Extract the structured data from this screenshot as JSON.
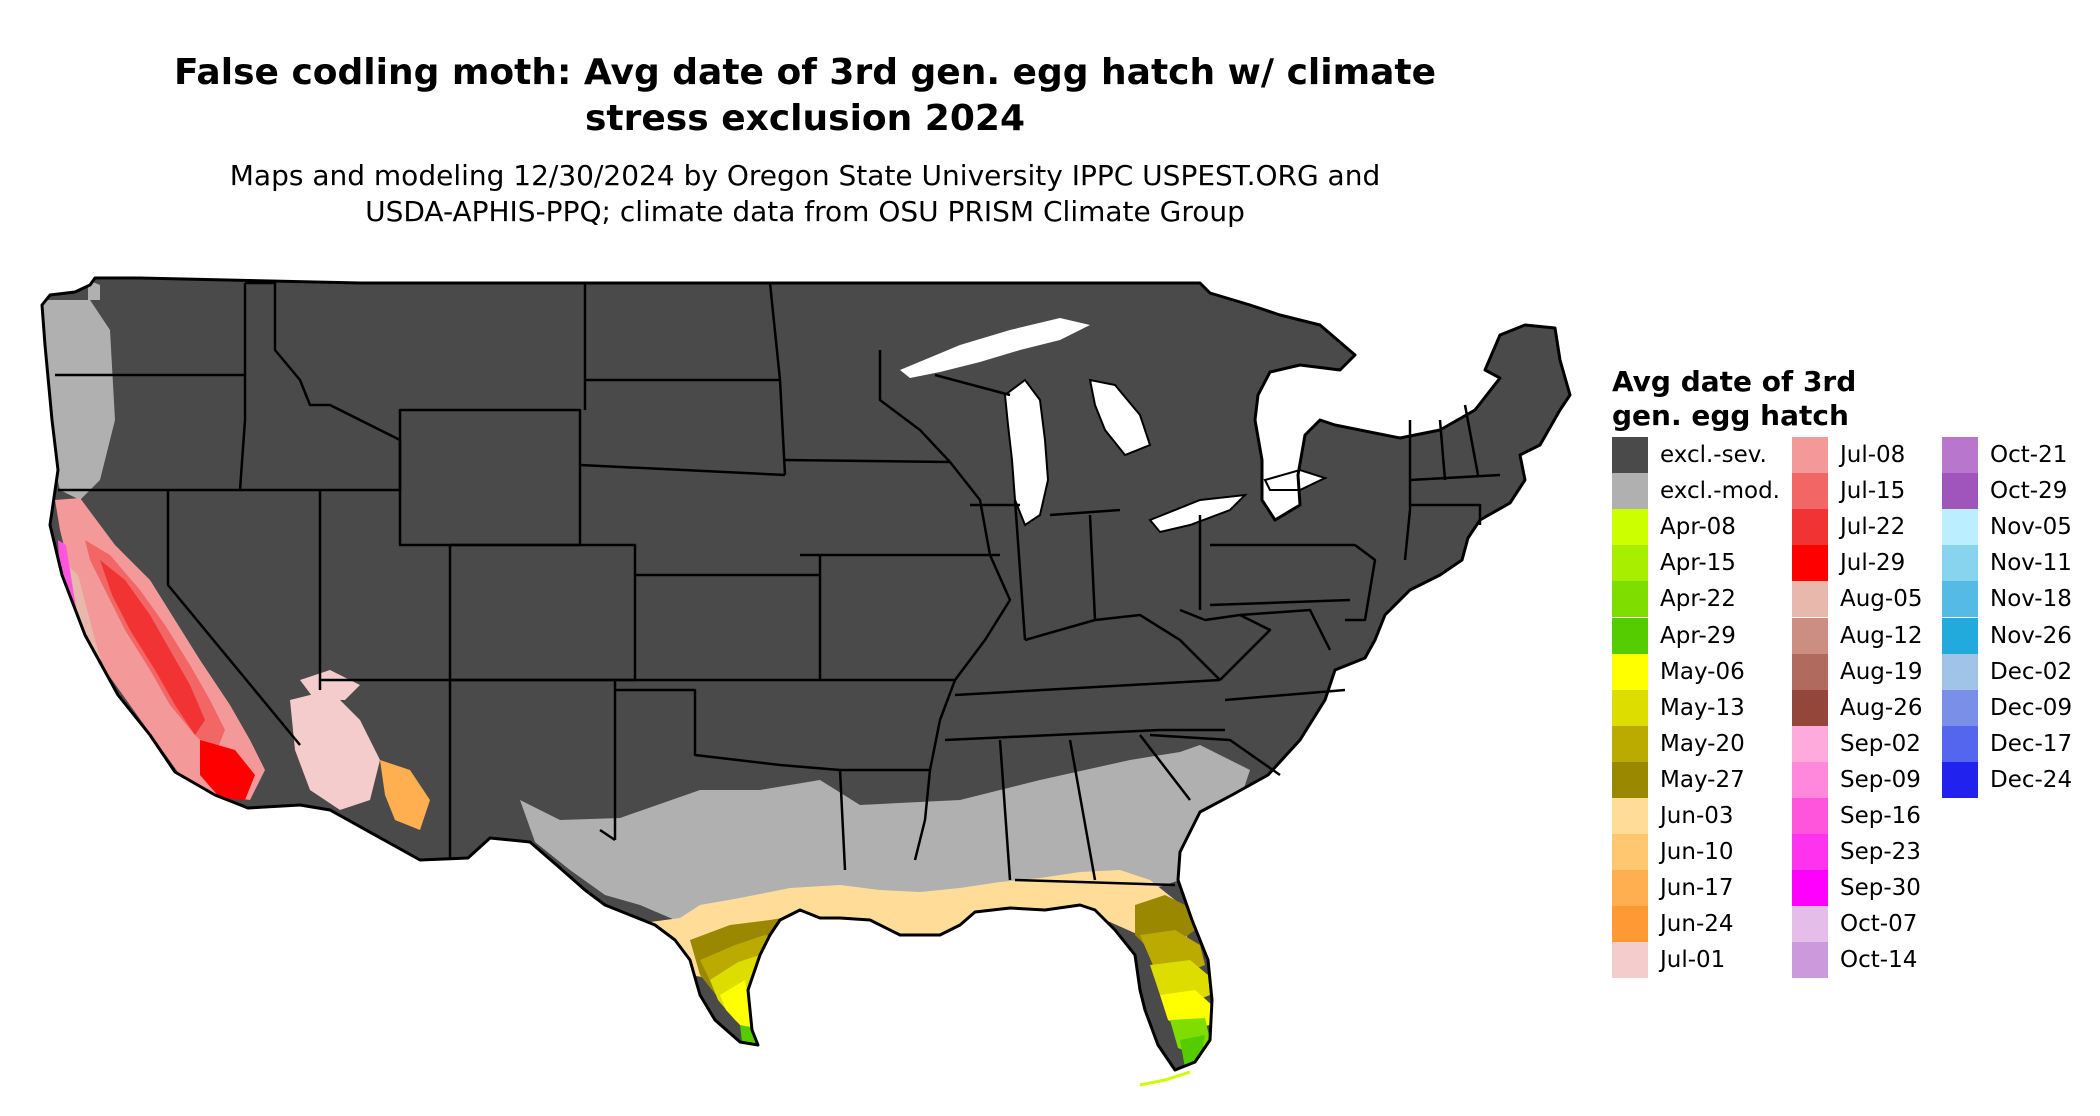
{
  "title_line1": "False codling moth: Avg date of 3rd gen. egg hatch w/ climate",
  "title_line2": "stress exclusion 2024",
  "subtitle_line1": "Maps and modeling 12/30/2024 by Oregon State University IPPC USPEST.ORG and",
  "subtitle_line2": "USDA-APHIS-PPQ; climate data from OSU PRISM Climate Group",
  "legend": {
    "title_line1": "Avg date of 3rd",
    "title_line2": "gen. egg hatch",
    "items": [
      {
        "label": "excl.-sev.",
        "color": "#4a4a4a"
      },
      {
        "label": "excl.-mod.",
        "color": "#b0b0b0"
      },
      {
        "label": "Apr-08",
        "color": "#ccff00"
      },
      {
        "label": "Apr-15",
        "color": "#a8ee00"
      },
      {
        "label": "Apr-22",
        "color": "#80dd00"
      },
      {
        "label": "Apr-29",
        "color": "#55cc00"
      },
      {
        "label": "May-06",
        "color": "#ffff00"
      },
      {
        "label": "May-13",
        "color": "#dddd00"
      },
      {
        "label": "May-20",
        "color": "#bbaa00"
      },
      {
        "label": "May-27",
        "color": "#998800"
      },
      {
        "label": "Jun-03",
        "color": "#ffdd99"
      },
      {
        "label": "Jun-10",
        "color": "#ffc870"
      },
      {
        "label": "Jun-17",
        "color": "#ffae50"
      },
      {
        "label": "Jun-24",
        "color": "#ff9933"
      },
      {
        "label": "Jul-01",
        "color": "#f5cccc"
      },
      {
        "label": "Jul-08",
        "color": "#f49999"
      },
      {
        "label": "Jul-15",
        "color": "#f26666"
      },
      {
        "label": "Jul-22",
        "color": "#f23333"
      },
      {
        "label": "Jul-29",
        "color": "#ff0000"
      },
      {
        "label": "Aug-05",
        "color": "#e8b8ac"
      },
      {
        "label": "Aug-12",
        "color": "#cc8e82"
      },
      {
        "label": "Aug-19",
        "color": "#b06a5e"
      },
      {
        "label": "Aug-26",
        "color": "#94463a"
      },
      {
        "label": "Sep-02",
        "color": "#ffaadd"
      },
      {
        "label": "Sep-09",
        "color": "#ff88dd"
      },
      {
        "label": "Sep-16",
        "color": "#ff55dd"
      },
      {
        "label": "Sep-23",
        "color": "#ff33ee"
      },
      {
        "label": "Sep-30",
        "color": "#ff00ff"
      },
      {
        "label": "Oct-07",
        "color": "#e4bde8"
      },
      {
        "label": "Oct-14",
        "color": "#cc99dd"
      },
      {
        "label": "Oct-21",
        "color": "#b877cc"
      },
      {
        "label": "Oct-29",
        "color": "#a055bb"
      },
      {
        "label": "Nov-05",
        "color": "#bbeeff"
      },
      {
        "label": "Nov-11",
        "color": "#88d4ee"
      },
      {
        "label": "Nov-18",
        "color": "#55bbe4"
      },
      {
        "label": "Nov-26",
        "color": "#22aadd"
      },
      {
        "label": "Dec-02",
        "color": "#a0c4e8"
      },
      {
        "label": "Dec-09",
        "color": "#7a8fe8"
      },
      {
        "label": "Dec-17",
        "color": "#5566ee"
      },
      {
        "label": "Dec-24",
        "color": "#2222ee"
      }
    ]
  }
}
